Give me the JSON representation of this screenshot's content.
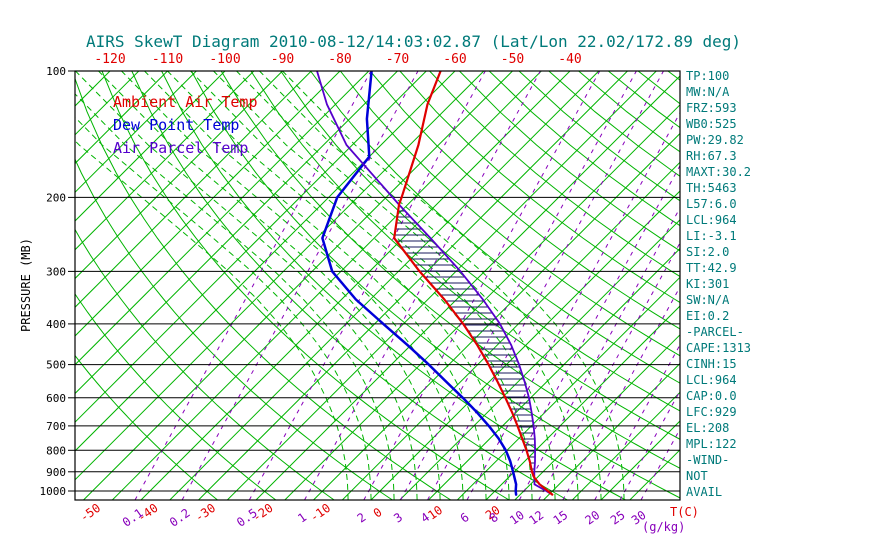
{
  "title": "AIRS SkewT Diagram 2010-08-12/14:03:02.87 (Lat/Lon 22.02/172.89 deg)",
  "colors": {
    "title_text": "#007a7a",
    "panel_text": "#007a7a",
    "temp_curve": "#e00000",
    "dewpoint_curve": "#0000d8",
    "parcel_curve": "#5500cc",
    "isotherm": "#00b400",
    "dry_adiabat": "#00b400",
    "moist_adiabat": "#00b400",
    "mixing_ratio": "#8800bb",
    "pressure_line": "#000000",
    "frame": "#000000",
    "hatch": "#1a1a5e",
    "axis_text": "#000000",
    "top_tick_text": "#e00000",
    "bottom_temp_text": "#e00000",
    "mixing_label_text": "#8800bb"
  },
  "legend": [
    {
      "label": "Ambient Air Temp",
      "color": "#e00000"
    },
    {
      "label": "Dew Point Temp",
      "color": "#0000d8"
    },
    {
      "label": "Air Parcel Temp",
      "color": "#5500cc"
    }
  ],
  "axes": {
    "left_label": "PRESSURE (MB)",
    "pressure_ticks": [
      100,
      200,
      300,
      400,
      500,
      600,
      700,
      800,
      900,
      1000
    ],
    "top_temp_ticks": [
      -120,
      -110,
      -100,
      -90,
      -80,
      -70,
      -60,
      -50,
      -40
    ],
    "bottom_temp_ticks": [
      -50,
      -40,
      -30,
      -20,
      -10,
      0,
      10,
      20
    ],
    "bottom_temp_unit": "T(C)",
    "mixing_ratio_labels": [
      0.1,
      0.2,
      0.5,
      1,
      2,
      3,
      4,
      6,
      8,
      10,
      12,
      15,
      20,
      25,
      30
    ],
    "mixing_ratio_unit": "(g/kg)"
  },
  "panel": [
    "TP:100",
    "MW:N/A",
    "FRZ:593",
    "WB0:525",
    "PW:29.82",
    "RH:67.3",
    "MAXT:30.2",
    "TH:5463",
    "L57:6.0",
    "LCL:964",
    "LI:-3.1",
    "SI:2.0",
    "TT:42.9",
    "KI:301",
    "SW:N/A",
    "EI:0.2",
    "-PARCEL-",
    "CAPE:1313",
    "CINH:15",
    "LCL:964",
    "CAP:0.0",
    "LFC:929",
    "EL:208",
    "MPL:122",
    "-WIND-",
    "NOT",
    "AVAIL"
  ],
  "chart_data": {
    "type": "line",
    "subtype": "skew-t-log-p",
    "title": "AIRS SkewT Diagram 2010-08-12/14:03:02.87 (Lat/Lon 22.02/172.89 deg)",
    "y_axis": {
      "label": "PRESSURE (MB)",
      "scale": "log",
      "range_mb": [
        100,
        1050
      ],
      "ticks_mb": [
        100,
        200,
        300,
        400,
        500,
        600,
        700,
        800,
        900,
        1000
      ]
    },
    "x_axis": {
      "label": "T(C)",
      "top_ticks_c": [
        -120,
        -110,
        -100,
        -90,
        -80,
        -70,
        -60,
        -50,
        -40
      ],
      "bottom_ticks_c": [
        -50,
        -40,
        -30,
        -20,
        -10,
        0,
        10,
        20
      ]
    },
    "series": [
      {
        "name": "Ambient Air Temp",
        "color": "#e00000",
        "width": 2.2,
        "points_mb_c": [
          [
            1020,
            30.6
          ],
          [
            1000,
            29.2
          ],
          [
            964,
            26.6
          ],
          [
            929,
            24.5
          ],
          [
            900,
            23.1
          ],
          [
            850,
            20.9
          ],
          [
            800,
            18.4
          ],
          [
            750,
            15.6
          ],
          [
            700,
            12.6
          ],
          [
            650,
            9.3
          ],
          [
            600,
            5.6
          ],
          [
            550,
            1.5
          ],
          [
            500,
            -3.1
          ],
          [
            450,
            -8.4
          ],
          [
            400,
            -14.6
          ],
          [
            350,
            -22.1
          ],
          [
            300,
            -31.3
          ],
          [
            250,
            -41.5
          ],
          [
            208,
            -46.5
          ],
          [
            200,
            -47.3
          ],
          [
            150,
            -53.5
          ],
          [
            120,
            -59
          ],
          [
            100,
            -62.5
          ]
        ]
      },
      {
        "name": "Dew Point Temp",
        "color": "#0000d8",
        "width": 2.5,
        "points_mb_c": [
          [
            1020,
            24.3
          ],
          [
            1000,
            23.6
          ],
          [
            964,
            22.5
          ],
          [
            900,
            19.8
          ],
          [
            850,
            17.5
          ],
          [
            800,
            14.8
          ],
          [
            750,
            11.5
          ],
          [
            700,
            7.6
          ],
          [
            650,
            3.2
          ],
          [
            600,
            -1.8
          ],
          [
            550,
            -7.4
          ],
          [
            500,
            -13.5
          ],
          [
            450,
            -20.5
          ],
          [
            400,
            -28.5
          ],
          [
            350,
            -37.5
          ],
          [
            300,
            -46.5
          ],
          [
            250,
            -54
          ],
          [
            200,
            -58.5
          ],
          [
            160,
            -60
          ],
          [
            130,
            -67
          ],
          [
            100,
            -74.5
          ]
        ]
      },
      {
        "name": "Air Parcel Temp",
        "color": "#5500cc",
        "width": 1.8,
        "points_mb_c": [
          [
            1013,
            30
          ],
          [
            1000,
            28.9
          ],
          [
            964,
            25.7
          ],
          [
            929,
            24.5
          ],
          [
            900,
            23.5
          ],
          [
            850,
            21.8
          ],
          [
            800,
            19.9
          ],
          [
            750,
            17.8
          ],
          [
            700,
            15.4
          ],
          [
            650,
            12.7
          ],
          [
            600,
            9.7
          ],
          [
            550,
            6.2
          ],
          [
            500,
            2.2
          ],
          [
            450,
            -2.5
          ],
          [
            400,
            -8.2
          ],
          [
            350,
            -15.4
          ],
          [
            300,
            -24.2
          ],
          [
            250,
            -35.2
          ],
          [
            208,
            -46.5
          ],
          [
            150,
            -66
          ],
          [
            120,
            -76.5
          ],
          [
            100,
            -84
          ]
        ]
      }
    ],
    "cape_hatch_between": [
      "Ambient Air Temp",
      "Air Parcel Temp"
    ],
    "cape_hatch_pressure_range_mb": [
      208,
      929
    ],
    "grid": {
      "isotherms_c": {
        "min": -120,
        "max": 45,
        "step": 5
      },
      "dry_adiabats_theta_k": {
        "min": 243,
        "max": 493,
        "step": 10
      },
      "moist_adiabats_start_c": {
        "min": -4,
        "max": 44,
        "step": 4
      },
      "moist_adiabat_profile_offsets_mb_c": [
        [
          1050,
          0
        ],
        [
          1000,
          -1.6
        ],
        [
          950,
          -3.3
        ],
        [
          900,
          -5.2
        ],
        [
          850,
          -7.2
        ],
        [
          800,
          -9.5
        ],
        [
          750,
          -12
        ],
        [
          700,
          -14.8
        ],
        [
          650,
          -18
        ],
        [
          600,
          -21.6
        ],
        [
          550,
          -25.7
        ],
        [
          500,
          -30.4
        ],
        [
          450,
          -36
        ],
        [
          400,
          -42.6
        ],
        [
          350,
          -50.6
        ],
        [
          300,
          -60.5
        ],
        [
          250,
          -73
        ],
        [
          200,
          -88.5
        ],
        [
          150,
          -108.5
        ],
        [
          100,
          -134
        ]
      ],
      "mixing_ratio_g_kg": [
        0.1,
        0.2,
        0.5,
        1,
        2,
        3,
        4,
        6,
        8,
        10,
        12,
        15,
        20,
        25,
        30
      ]
    }
  }
}
